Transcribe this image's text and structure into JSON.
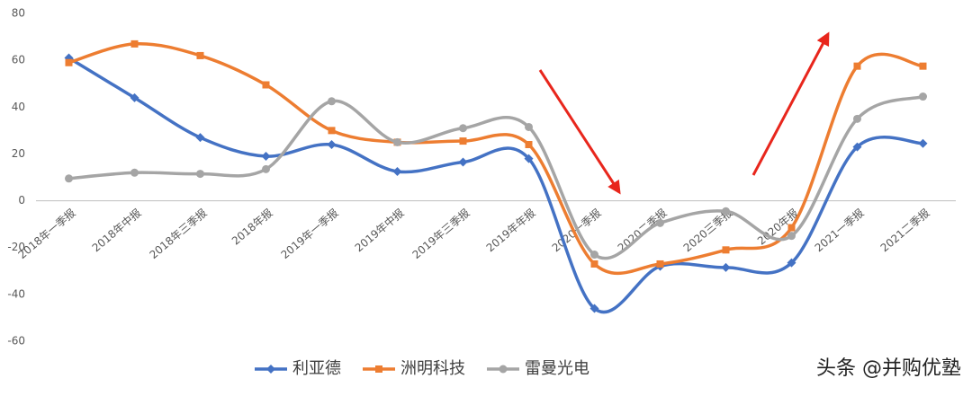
{
  "chart_data": {
    "type": "line",
    "smooth": true,
    "grid": false,
    "categories": [
      "2018年一季报",
      "2018年中报",
      "2018年三季报",
      "2018年报",
      "2019年一季报",
      "2019年中报",
      "2019年三季报",
      "2019年年报",
      "2020一季报",
      "2020二季报",
      "2020三季报",
      "2020年报",
      "2021一季报",
      "2021二季报"
    ],
    "ylim": [
      -60,
      80
    ],
    "yticks": [
      -60,
      -40,
      -20,
      0,
      20,
      40,
      60,
      80
    ],
    "series": [
      {
        "name": "利亚德",
        "color": "#4472c4",
        "marker": "diamond",
        "values": [
          61,
          44,
          27,
          19,
          24,
          12.5,
          16.5,
          18,
          -46,
          -28,
          -28.5,
          -26.5,
          23,
          24.5
        ]
      },
      {
        "name": "洲明科技",
        "color": "#ed7d31",
        "marker": "square",
        "values": [
          59,
          67,
          62,
          49.5,
          30,
          25,
          25.5,
          24,
          -27,
          -27,
          -21,
          -11.5,
          57.5,
          57.5
        ]
      },
      {
        "name": "雷曼光电",
        "color": "#a5a5a5",
        "marker": "circle",
        "values": [
          9.5,
          12,
          11.5,
          13.5,
          42.5,
          25,
          31,
          31.5,
          -23,
          -9.5,
          -4.5,
          -15,
          35,
          44.5
        ]
      }
    ],
    "legend": "bottom",
    "watermark": "头条 @并购优塾"
  }
}
